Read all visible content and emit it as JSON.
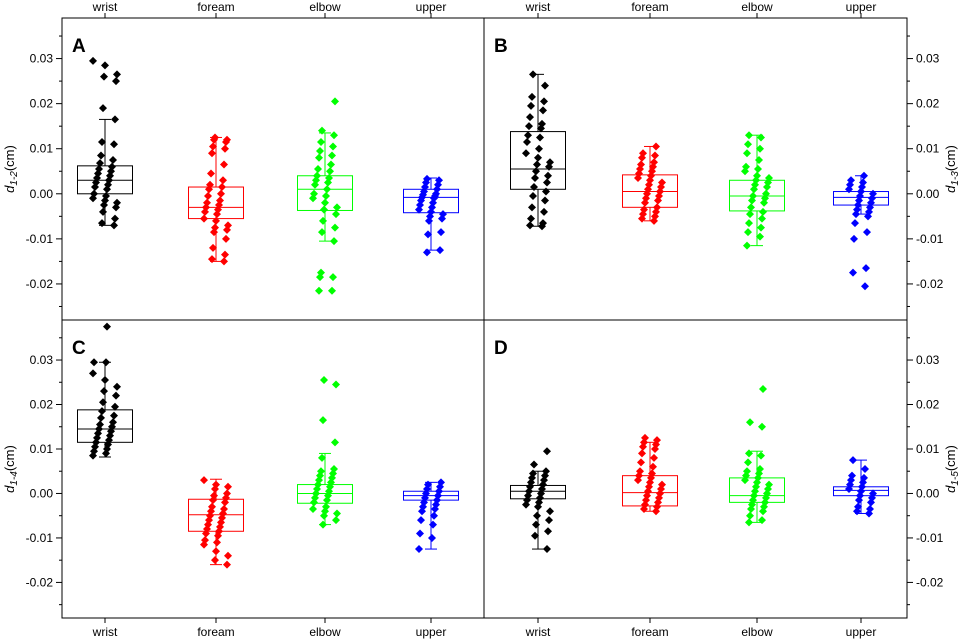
{
  "chart_data": {
    "type": "box",
    "categories": [
      "wrist",
      "foream",
      "elbow",
      "upper"
    ],
    "category_colors": [
      "#000000",
      "#ff0000",
      "#00ff00",
      "#0000ff"
    ],
    "y_unit": "(cm)",
    "ylim": [
      -0.028,
      0.039
    ],
    "y_ticks": [
      -0.02,
      -0.01,
      0.0,
      0.01,
      0.02,
      0.03
    ],
    "y_tick_labels": [
      "-0.02",
      "-0.01",
      "0.00",
      "0.01",
      "0.02",
      "0.03"
    ],
    "panels": [
      {
        "label": "A",
        "y_symbol": "d",
        "y_subscript": "1-2",
        "y_axis_side": "left",
        "boxes": [
          {
            "category": "wrist",
            "q1": 0.0,
            "median": 0.003,
            "q3": 0.0062,
            "whisker_low": -0.007,
            "whisker_high": 0.0165,
            "points": [
              0.0295,
              0.0285,
              0.0265,
              0.026,
              0.025,
              0.019,
              0.0165,
              0.0115,
              0.011,
              0.0085,
              0.0075,
              0.0068,
              0.006,
              0.0055,
              0.005,
              0.0045,
              0.004,
              0.0035,
              0.003,
              0.0025,
              0.002,
              0.0015,
              0.001,
              0.0,
              -0.0005,
              -0.001,
              -0.0015,
              -0.002,
              -0.0025,
              -0.003,
              -0.004,
              -0.0055,
              -0.0065,
              -0.007
            ]
          },
          {
            "category": "foream",
            "q1": -0.0055,
            "median": -0.003,
            "q3": 0.0015,
            "whisker_low": -0.015,
            "whisker_high": 0.0125,
            "points": [
              0.0125,
              0.012,
              0.012,
              0.0115,
              0.0105,
              0.01,
              0.009,
              0.0065,
              0.0045,
              0.003,
              0.002,
              0.0015,
              0.001,
              0.0,
              -0.0005,
              -0.0015,
              -0.002,
              -0.0025,
              -0.003,
              -0.0035,
              -0.004,
              -0.0045,
              -0.0055,
              -0.006,
              -0.007,
              -0.0075,
              -0.008,
              -0.0085,
              -0.01,
              -0.012,
              -0.0135,
              -0.0145,
              -0.015
            ]
          },
          {
            "category": "elbow",
            "q1": -0.0037,
            "median": 0.001,
            "q3": 0.004,
            "whisker_low": -0.0105,
            "whisker_high": 0.0135,
            "points": [
              0.0205,
              0.014,
              0.013,
              0.0115,
              0.0105,
              0.0095,
              0.0085,
              0.008,
              0.0065,
              0.0055,
              0.005,
              0.004,
              0.0035,
              0.003,
              0.0025,
              0.002,
              0.001,
              0.0,
              -0.0005,
              -0.001,
              -0.002,
              -0.003,
              -0.0035,
              -0.0045,
              -0.006,
              -0.0075,
              -0.0085,
              -0.0105,
              -0.0175,
              -0.0185,
              -0.0185,
              -0.0215,
              -0.0215
            ]
          },
          {
            "category": "upper",
            "q1": -0.0042,
            "median": -0.0008,
            "q3": 0.001,
            "whisker_low": -0.0125,
            "whisker_high": 0.0035,
            "points": [
              0.0033,
              0.003,
              0.0025,
              0.002,
              0.0015,
              0.001,
              0.0005,
              0.0,
              -0.0002,
              -0.0005,
              -0.0008,
              -0.001,
              -0.0015,
              -0.002,
              -0.0025,
              -0.003,
              -0.0035,
              -0.004,
              -0.0045,
              -0.005,
              -0.0055,
              -0.006,
              -0.0085,
              -0.009,
              -0.0125,
              -0.013
            ]
          }
        ]
      },
      {
        "label": "B",
        "y_symbol": "d",
        "y_subscript": "1-3",
        "y_axis_side": "right",
        "boxes": [
          {
            "category": "wrist",
            "q1": 0.001,
            "median": 0.0055,
            "q3": 0.0138,
            "whisker_low": -0.0072,
            "whisker_high": 0.0265,
            "points": [
              0.0265,
              0.024,
              0.0215,
              0.0205,
              0.0195,
              0.0185,
              0.017,
              0.0155,
              0.015,
              0.0145,
              0.013,
              0.0125,
              0.0115,
              0.01,
              0.009,
              0.008,
              0.007,
              0.0065,
              0.006,
              0.005,
              0.004,
              0.0035,
              0.0025,
              0.0015,
              0.0005,
              -0.0005,
              -0.0015,
              -0.003,
              -0.004,
              -0.0055,
              -0.0065,
              -0.007,
              -0.0072
            ]
          },
          {
            "category": "foream",
            "q1": -0.003,
            "median": 0.0005,
            "q3": 0.0042,
            "whisker_low": -0.006,
            "whisker_high": 0.0105,
            "points": [
              0.0105,
              0.009,
              0.0085,
              0.008,
              0.007,
              0.0065,
              0.006,
              0.0055,
              0.005,
              0.0045,
              0.004,
              0.0035,
              0.003,
              0.0025,
              0.002,
              0.0015,
              0.001,
              0.0005,
              0.0,
              -0.0005,
              -0.001,
              -0.0015,
              -0.002,
              -0.003,
              -0.0035,
              -0.004,
              -0.0045,
              -0.005,
              -0.0055,
              -0.006
            ]
          },
          {
            "category": "elbow",
            "q1": -0.0038,
            "median": -0.0005,
            "q3": 0.003,
            "whisker_low": -0.0115,
            "whisker_high": 0.013,
            "points": [
              0.013,
              0.0125,
              0.011,
              0.01,
              0.009,
              0.0075,
              0.006,
              0.0055,
              0.005,
              0.004,
              0.0035,
              0.003,
              0.0025,
              0.002,
              0.0015,
              0.001,
              0.0,
              -0.0005,
              -0.001,
              -0.0015,
              -0.002,
              -0.003,
              -0.004,
              -0.0045,
              -0.0055,
              -0.0065,
              -0.0075,
              -0.0085,
              -0.0095,
              -0.0115
            ]
          },
          {
            "category": "upper",
            "q1": -0.0025,
            "median": -0.0008,
            "q3": 0.0005,
            "whisker_low": -0.0045,
            "whisker_high": 0.004,
            "points": [
              0.004,
              0.003,
              0.0025,
              0.002,
              0.0015,
              0.001,
              0.0005,
              0.0,
              -0.0005,
              -0.001,
              -0.0015,
              -0.002,
              -0.0025,
              -0.003,
              -0.0035,
              -0.004,
              -0.0045,
              -0.005,
              -0.0065,
              -0.0085,
              -0.01,
              -0.0165,
              -0.0175,
              -0.0205
            ]
          }
        ]
      },
      {
        "label": "C",
        "y_symbol": "d",
        "y_subscript": "1-4",
        "y_axis_side": "left",
        "boxes": [
          {
            "category": "wrist",
            "q1": 0.0115,
            "median": 0.0145,
            "q3": 0.0188,
            "whisker_low": 0.0082,
            "whisker_high": 0.0295,
            "points": [
              0.0375,
              0.0295,
              0.0295,
              0.027,
              0.0255,
              0.024,
              0.023,
              0.022,
              0.0205,
              0.0195,
              0.0185,
              0.0175,
              0.017,
              0.016,
              0.0155,
              0.015,
              0.0145,
              0.014,
              0.0135,
              0.013,
              0.0125,
              0.012,
              0.0115,
              0.011,
              0.0105,
              0.01,
              0.0095,
              0.009,
              0.0085
            ]
          },
          {
            "category": "foream",
            "q1": -0.0085,
            "median": -0.0048,
            "q3": -0.0013,
            "whisker_low": -0.016,
            "whisker_high": 0.0032,
            "points": [
              0.003,
              0.002,
              0.0015,
              0.001,
              0.0,
              -0.0005,
              -0.001,
              -0.0015,
              -0.002,
              -0.003,
              -0.0035,
              -0.004,
              -0.0045,
              -0.005,
              -0.0055,
              -0.006,
              -0.0065,
              -0.007,
              -0.0075,
              -0.008,
              -0.0085,
              -0.009,
              -0.0095,
              -0.0105,
              -0.011,
              -0.0115,
              -0.013,
              -0.014,
              -0.015,
              -0.016
            ]
          },
          {
            "category": "elbow",
            "q1": -0.0022,
            "median": 0.0,
            "q3": 0.002,
            "whisker_low": -0.007,
            "whisker_high": 0.009,
            "points": [
              0.0255,
              0.0245,
              0.0165,
              0.0115,
              0.008,
              0.0055,
              0.005,
              0.0045,
              0.004,
              0.0035,
              0.003,
              0.0025,
              0.002,
              0.0015,
              0.001,
              0.0005,
              0.0,
              -0.0005,
              -0.001,
              -0.0015,
              -0.002,
              -0.003,
              -0.0035,
              -0.004,
              -0.0045,
              -0.005,
              -0.006,
              -0.007
            ]
          },
          {
            "category": "upper",
            "q1": -0.0015,
            "median": -0.0005,
            "q3": 0.0005,
            "whisker_low": -0.0125,
            "whisker_high": 0.0025,
            "points": [
              0.0025,
              0.002,
              0.0015,
              0.001,
              0.0005,
              0.0,
              -0.0005,
              -0.001,
              -0.0015,
              -0.002,
              -0.0025,
              -0.003,
              -0.0035,
              -0.004,
              -0.005,
              -0.006,
              -0.007,
              -0.009,
              -0.01,
              -0.0125
            ]
          }
        ]
      },
      {
        "label": "D",
        "y_symbol": "d",
        "y_subscript": "1-5",
        "y_axis_side": "right",
        "boxes": [
          {
            "category": "wrist",
            "q1": -0.0012,
            "median": 0.0005,
            "q3": 0.0018,
            "whisker_low": -0.0125,
            "whisker_high": 0.005,
            "points": [
              0.0095,
              0.0065,
              0.005,
              0.0045,
              0.004,
              0.0035,
              0.003,
              0.0025,
              0.002,
              0.0015,
              0.001,
              0.0005,
              0.0,
              -0.0005,
              -0.001,
              -0.0015,
              -0.002,
              -0.0025,
              -0.003,
              -0.004,
              -0.005,
              -0.006,
              -0.007,
              -0.0085,
              -0.0095,
              -0.0125
            ]
          },
          {
            "category": "foream",
            "q1": -0.0028,
            "median": 0.0002,
            "q3": 0.004,
            "whisker_low": -0.004,
            "whisker_high": 0.0115,
            "points": [
              0.0125,
              0.012,
              0.0115,
              0.011,
              0.0105,
              0.01,
              0.009,
              0.008,
              0.007,
              0.006,
              0.005,
              0.0045,
              0.004,
              0.0035,
              0.003,
              0.0025,
              0.002,
              0.0015,
              0.001,
              0.0005,
              0.0,
              -0.0005,
              -0.001,
              -0.0015,
              -0.002,
              -0.0025,
              -0.003,
              -0.0035,
              -0.004
            ]
          },
          {
            "category": "elbow",
            "q1": -0.002,
            "median": -0.0005,
            "q3": 0.0035,
            "whisker_low": -0.0065,
            "whisker_high": 0.0095,
            "points": [
              0.0235,
              0.016,
              0.015,
              0.009,
              0.0085,
              0.007,
              0.0055,
              0.005,
              0.0045,
              0.004,
              0.0035,
              0.003,
              0.0025,
              0.002,
              0.0015,
              0.001,
              0.0005,
              0.0,
              -0.0005,
              -0.001,
              -0.0015,
              -0.002,
              -0.0025,
              -0.003,
              -0.0035,
              -0.004,
              -0.005,
              -0.006,
              -0.0065
            ]
          },
          {
            "category": "upper",
            "q1": -0.0005,
            "median": 0.0007,
            "q3": 0.0015,
            "whisker_low": -0.0045,
            "whisker_high": 0.0075,
            "points": [
              0.0075,
              0.0055,
              0.004,
              0.0035,
              0.003,
              0.0025,
              0.002,
              0.0015,
              0.001,
              0.0005,
              0.0,
              -0.0005,
              -0.001,
              -0.0015,
              -0.002,
              -0.003,
              -0.0035,
              -0.004,
              -0.0045
            ]
          }
        ]
      }
    ]
  }
}
